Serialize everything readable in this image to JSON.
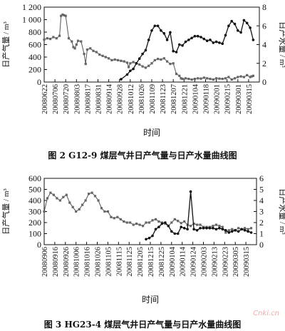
{
  "chart_data": [
    {
      "type": "line",
      "title": "",
      "xlabel": "时间",
      "ylabel": "日产气量 / m³",
      "y2label": "日产水量 / m³",
      "ylim": [
        0,
        1200
      ],
      "y2lim": [
        0,
        8
      ],
      "yticks": [
        0,
        200,
        400,
        600,
        800,
        1000,
        1200
      ],
      "y2ticks": [
        0,
        2,
        4,
        6,
        8
      ],
      "grid": false,
      "date_ticks": [
        "20080622",
        "20080706",
        "20080720",
        "20080803",
        "20080817",
        "20080831",
        "20080914",
        "20080928",
        "20081012",
        "20081026",
        "20081109",
        "20081123",
        "20081207",
        "20081221",
        "20090104",
        "20090118",
        "20090201",
        "20090215",
        "20090301",
        "20090315"
      ],
      "series": [
        {
          "axis": "left",
          "marker": "square",
          "x": [
            0,
            4,
            8,
            12,
            16,
            20,
            22,
            24,
            26,
            28,
            32,
            36,
            38,
            40,
            42,
            44,
            48,
            52,
            54,
            56,
            60,
            64,
            68,
            72,
            76,
            80,
            84,
            88,
            92,
            96,
            100,
            104,
            108,
            110,
            112,
            116,
            120,
            124,
            128,
            132,
            136,
            140,
            144,
            148,
            152,
            156,
            160,
            164,
            168,
            172,
            176,
            178,
            180,
            184,
            188,
            192,
            196,
            200,
            204,
            208,
            212,
            216,
            220,
            224,
            228,
            232,
            236,
            240,
            244,
            248,
            252,
            256,
            260,
            264,
            268,
            270,
            272
          ],
          "y": [
            680,
            700,
            690,
            720,
            700,
            740,
            1060,
            1080,
            1070,
            1060,
            700,
            650,
            560,
            540,
            600,
            660,
            650,
            450,
            290,
            520,
            540,
            500,
            480,
            440,
            420,
            400,
            380,
            350,
            360,
            350,
            340,
            330,
            310,
            240,
            300,
            320,
            300,
            280,
            250,
            230,
            260,
            300,
            350,
            370,
            360,
            380,
            330,
            290,
            300,
            130,
            100,
            60,
            50,
            60,
            50,
            40,
            50,
            60,
            55,
            70,
            60,
            50,
            40,
            60,
            55,
            50,
            60,
            80,
            40,
            60,
            80,
            90,
            80,
            110,
            80,
            90,
            100
          ]
        },
        {
          "axis": "right",
          "marker": "dot",
          "x": [
            100,
            108,
            112,
            116,
            120,
            124,
            128,
            132,
            136,
            140,
            144,
            148,
            152,
            156,
            160,
            164,
            168,
            172,
            176,
            180,
            184,
            188,
            192,
            196,
            200,
            204,
            208,
            212,
            216,
            220,
            224,
            228,
            232,
            236,
            240,
            244,
            248,
            252,
            256,
            260,
            264,
            268,
            272
          ],
          "y": [
            0.3,
            0.8,
            1.2,
            1.4,
            2.0,
            2.5,
            3.0,
            3.4,
            4.5,
            5.5,
            6.0,
            6.0,
            5.5,
            5.2,
            4.5,
            5.3,
            3.3,
            3.2,
            4.0,
            3.9,
            4.3,
            4.5,
            4.7,
            4.9,
            4.9,
            4.8,
            4.6,
            4.4,
            4.5,
            4.2,
            4.3,
            4.2,
            4.1,
            5.0,
            6.0,
            6.5,
            6.2,
            5.5,
            5.3,
            6.6,
            6.3,
            5.8,
            4.5
          ]
        }
      ]
    },
    {
      "type": "line",
      "title": "",
      "xlabel": "时间",
      "ylabel": "日产气量 / m³",
      "y2label": "日产水量 / m³",
      "ylim": [
        0,
        600
      ],
      "y2lim": [
        0,
        6
      ],
      "yticks": [
        0,
        100,
        200,
        300,
        400,
        500,
        600
      ],
      "y2ticks": [
        0,
        1,
        2,
        3,
        4,
        5,
        6
      ],
      "grid": false,
      "date_ticks": [
        "20080906",
        "20080916",
        "20080926",
        "20081006",
        "20081016",
        "20081026",
        "20081105",
        "20081115",
        "20081125",
        "20081205",
        "20081215",
        "20081225",
        "20090104",
        "20090114",
        "20090124",
        "20090203",
        "20090213",
        "20090223",
        "20090305",
        "20090315"
      ],
      "series": [
        {
          "axis": "left",
          "marker": "square",
          "x": [
            0,
            3,
            6,
            9,
            12,
            15,
            18,
            21,
            24,
            27,
            30,
            33,
            36,
            39,
            42,
            45,
            48,
            51,
            54,
            57,
            60,
            63,
            66,
            69,
            72,
            75,
            78,
            81,
            84,
            87,
            90,
            93,
            96,
            99,
            102,
            105,
            108,
            111,
            114,
            117,
            120,
            123,
            126,
            129,
            132,
            135,
            138,
            141,
            144,
            147,
            150,
            153,
            156,
            159,
            162,
            165,
            168,
            171,
            174,
            177,
            180,
            183,
            186,
            189,
            192,
            195
          ],
          "y": [
            300,
            420,
            470,
            450,
            420,
            400,
            430,
            450,
            380,
            340,
            300,
            320,
            360,
            400,
            460,
            470,
            440,
            400,
            330,
            300,
            300,
            250,
            240,
            250,
            230,
            210,
            200,
            200,
            180,
            190,
            180,
            170,
            200,
            200,
            220,
            230,
            210,
            200,
            190,
            170,
            200,
            230,
            215,
            195,
            210,
            180,
            170,
            190,
            180,
            180,
            160,
            160,
            160,
            170,
            180,
            170,
            160,
            110,
            130,
            140,
            130,
            150,
            140,
            150,
            140,
            150
          ]
        },
        {
          "axis": "right",
          "marker": "dot",
          "x": [
            96,
            99,
            102,
            105,
            108,
            111,
            114,
            117,
            120,
            123,
            126,
            129,
            132,
            135,
            138,
            141,
            144,
            147,
            150,
            153,
            156,
            159,
            162,
            165,
            168,
            171,
            174,
            177,
            180,
            183,
            186,
            189,
            192,
            195
          ],
          "y": [
            0.5,
            0.6,
            0.8,
            1.4,
            1.6,
            1.9,
            2.0,
            1.7,
            1.2,
            1.0,
            1.0,
            1.6,
            1.5,
            1.4,
            4.8,
            1.4,
            1.3,
            1.5,
            1.5,
            1.5,
            1.5,
            1.5,
            1.4,
            1.5,
            1.4,
            1.3,
            1.1,
            1.2,
            1.3,
            1.2,
            1.4,
            1.3,
            1.2,
            1.1
          ]
        }
      ]
    }
  ],
  "captions": {
    "fig2": "图 2   G12-9 煤层气井日产气量与日产水量曲线图",
    "fig3": "图 3   HG23-4 煤层气井日产气量与日产水量曲线图"
  },
  "watermark": "Cnki.cn"
}
